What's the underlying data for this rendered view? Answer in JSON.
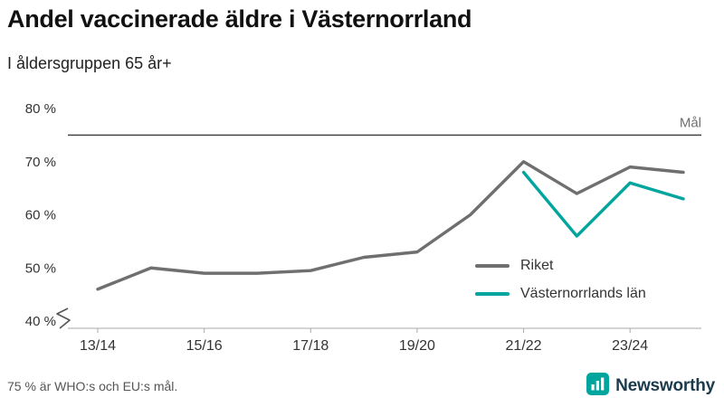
{
  "header": {
    "title": "Andel vaccinerade äldre i Västernorrland",
    "subtitle": "I åldersgruppen 65 år+"
  },
  "chart_data": {
    "type": "line",
    "x": [
      "13/14",
      "14/15",
      "15/16",
      "16/17",
      "17/18",
      "18/19",
      "19/20",
      "20/21",
      "21/22",
      "22/23",
      "23/24",
      "24/25"
    ],
    "x_tick_labels": [
      "13/14",
      "15/16",
      "17/18",
      "19/20",
      "21/22",
      "23/24"
    ],
    "series": [
      {
        "name": "Riket",
        "color": "#6f6f6f",
        "values": [
          46,
          50,
          49,
          49,
          49.5,
          52,
          53,
          60,
          70,
          64,
          69,
          68
        ]
      },
      {
        "name": "Västernorrlands län",
        "color": "#00a59d",
        "values": [
          null,
          null,
          null,
          null,
          null,
          null,
          null,
          null,
          68,
          56,
          66,
          63
        ]
      }
    ],
    "goal": {
      "value": 75,
      "label": "Mål"
    },
    "ylim": [
      40,
      80
    ],
    "yticks": [
      40,
      50,
      60,
      70,
      80
    ],
    "ytick_suffix": " %",
    "axis_break": true,
    "legend_position": "inside-right-bottom",
    "grid": false
  },
  "footer": {
    "note": "75 % är WHO:s och EU:s mål.",
    "brand": "Newsworthy"
  }
}
